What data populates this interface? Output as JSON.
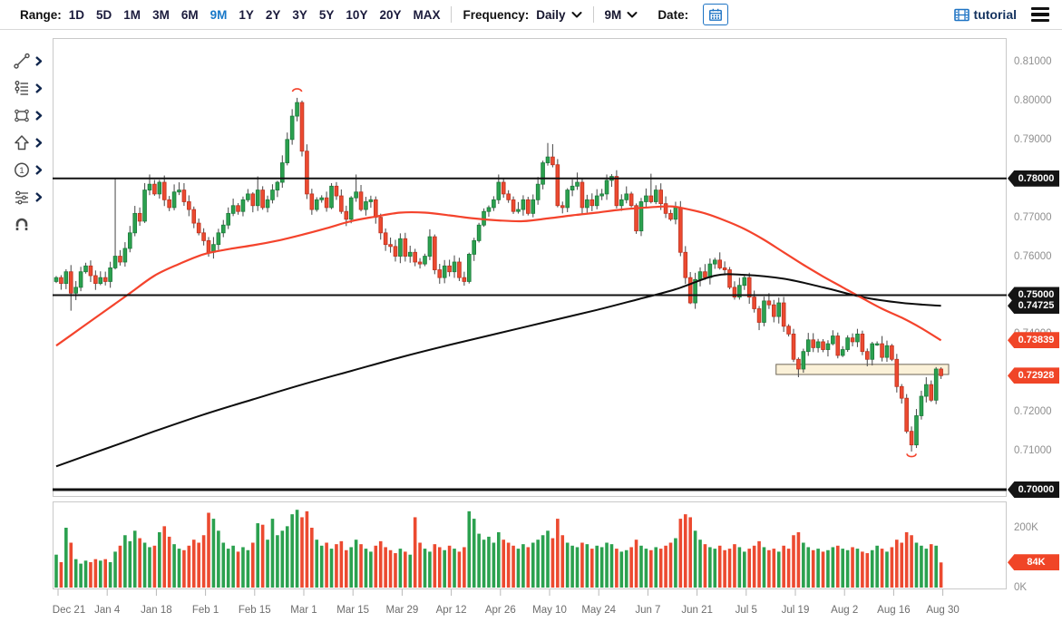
{
  "toolbar": {
    "range_label": "Range:",
    "range_options": [
      "1D",
      "5D",
      "1M",
      "3M",
      "6M",
      "9M",
      "1Y",
      "2Y",
      "3Y",
      "5Y",
      "10Y",
      "20Y",
      "MAX"
    ],
    "range_selected": "9M",
    "frequency_label": "Frequency:",
    "frequency_value": "Daily",
    "period_value": "9M",
    "date_label": "Date:",
    "tutorial_label": "tutorial"
  },
  "sidebar": {
    "tools": [
      {
        "icon": "trend-line-icon",
        "has_submenu": true
      },
      {
        "icon": "fibonacci-icon",
        "has_submenu": true
      },
      {
        "icon": "shape-icon",
        "has_submenu": true
      },
      {
        "icon": "arrow-icon",
        "has_submenu": true
      },
      {
        "icon": "annotation-number-icon",
        "has_submenu": true
      },
      {
        "icon": "indicator-icon",
        "has_submenu": true
      },
      {
        "icon": "magnet-icon",
        "has_submenu": false
      }
    ]
  },
  "colors": {
    "up": "#2ba14f",
    "up_border": "#1b7a3a",
    "down": "#ec4a30",
    "down_border": "#bd3220",
    "wick": "#555555",
    "ma_fast": "#f4432c",
    "ma_slow": "#0d0d0d",
    "level_line": "#111111",
    "zone_fill": "#fbf1d8",
    "zone_border": "#6e6557",
    "tag_dark": "#141414",
    "tag_red": "#f04527",
    "selected_range": "#1878c8"
  },
  "chart_data": {
    "type": "candlestick",
    "frequency": "Daily",
    "range": "9M",
    "x_tick_labels": [
      "Dec 21",
      "Jan 4",
      "Jan 18",
      "Feb 1",
      "Feb 15",
      "Mar 1",
      "Mar 15",
      "Mar 29",
      "Apr 12",
      "Apr 26",
      "May 10",
      "May 24",
      "Jun 7",
      "Jun 21",
      "Jul 5",
      "Jul 19",
      "Aug 2",
      "Aug 16",
      "Aug 30"
    ],
    "candles_per_tick": 10,
    "price_axis_labels": [
      "0.81000",
      "0.80000",
      "0.79000",
      "0.78000",
      "0.77000",
      "0.76000",
      "0.75000",
      "0.74000",
      "0.73000",
      "0.72000",
      "0.71000",
      "0.70000"
    ],
    "price_axis_values": [
      0.81,
      0.8,
      0.79,
      0.78,
      0.77,
      0.76,
      0.75,
      0.74,
      0.73,
      0.72,
      0.71,
      0.7
    ],
    "volume_axis": [
      {
        "label": "200K",
        "value": 200
      },
      {
        "label": "0K",
        "value": 0
      }
    ],
    "levels": [
      {
        "price": 0.78,
        "label": "0.78000",
        "width": 2
      },
      {
        "price": 0.75,
        "label": "0.75000",
        "width": 2
      },
      {
        "price": 0.7,
        "label": "0.70000",
        "width": 3
      }
    ],
    "axis_tags": [
      {
        "label": "0.78000",
        "price": 0.78,
        "style": "dark"
      },
      {
        "label": "0.75000",
        "price": 0.75,
        "style": "dark"
      },
      {
        "label": "0.74725",
        "price": 0.74725,
        "style": "dark"
      },
      {
        "label": "0.73839",
        "price": 0.73839,
        "style": "red"
      },
      {
        "label": "0.72928",
        "price": 0.72928,
        "style": "red"
      },
      {
        "label": "0.70000",
        "price": 0.7,
        "style": "dark"
      }
    ],
    "last_price": 0.72928,
    "volume_tag": {
      "label": "84K",
      "value": 84,
      "style": "red"
    },
    "first_open": 0.7535,
    "closes": [
      0.7545,
      0.753,
      0.756,
      0.7505,
      0.752,
      0.756,
      0.7575,
      0.755,
      0.753,
      0.7545,
      0.7535,
      0.757,
      0.76,
      0.7585,
      0.762,
      0.766,
      0.771,
      0.769,
      0.777,
      0.7785,
      0.776,
      0.779,
      0.7745,
      0.7725,
      0.7765,
      0.777,
      0.774,
      0.772,
      0.7685,
      0.766,
      0.764,
      0.761,
      0.763,
      0.766,
      0.768,
      0.771,
      0.773,
      0.7715,
      0.7745,
      0.776,
      0.773,
      0.777,
      0.7725,
      0.7745,
      0.777,
      0.779,
      0.784,
      0.79,
      0.796,
      0.7995,
      0.787,
      0.776,
      0.772,
      0.7745,
      0.775,
      0.7725,
      0.778,
      0.7755,
      0.7715,
      0.7695,
      0.775,
      0.7765,
      0.772,
      0.774,
      0.7745,
      0.77,
      0.766,
      0.763,
      0.7625,
      0.76,
      0.7645,
      0.76,
      0.761,
      0.7585,
      0.758,
      0.76,
      0.765,
      0.7565,
      0.7545,
      0.7575,
      0.756,
      0.7585,
      0.7545,
      0.7535,
      0.7605,
      0.764,
      0.768,
      0.7715,
      0.7725,
      0.7745,
      0.779,
      0.776,
      0.7745,
      0.7715,
      0.772,
      0.7745,
      0.771,
      0.7745,
      0.7785,
      0.784,
      0.7855,
      0.7835,
      0.773,
      0.7725,
      0.777,
      0.778,
      0.779,
      0.7725,
      0.7745,
      0.773,
      0.7755,
      0.776,
      0.7795,
      0.7805,
      0.773,
      0.7745,
      0.776,
      0.773,
      0.7665,
      0.774,
      0.7755,
      0.774,
      0.777,
      0.7735,
      0.771,
      0.7695,
      0.7725,
      0.761,
      0.7545,
      0.748,
      0.754,
      0.756,
      0.7545,
      0.758,
      0.759,
      0.757,
      0.7565,
      0.752,
      0.7495,
      0.7525,
      0.7545,
      0.7495,
      0.7465,
      0.743,
      0.7485,
      0.7475,
      0.7445,
      0.748,
      0.742,
      0.74,
      0.7335,
      0.731,
      0.7355,
      0.7385,
      0.7365,
      0.738,
      0.736,
      0.7375,
      0.7395,
      0.7345,
      0.736,
      0.739,
      0.738,
      0.74,
      0.7355,
      0.7335,
      0.7375,
      0.7375,
      0.734,
      0.737,
      0.7335,
      0.7265,
      0.7235,
      0.715,
      0.7115,
      0.719,
      0.724,
      0.727,
      0.723,
      0.731,
      0.7293
    ],
    "wick_overrides": {
      "3": {
        "low": 0.746
      },
      "12": {
        "high": 0.78
      },
      "19": {
        "high": 0.781
      },
      "41": {
        "high": 0.7805
      },
      "49": {
        "high": 0.8007
      },
      "50": {
        "high": 0.8
      },
      "61": {
        "high": 0.781
      },
      "100": {
        "high": 0.7891
      },
      "101": {
        "high": 0.7888
      },
      "106": {
        "high": 0.7815
      },
      "112": {
        "high": 0.781
      },
      "121": {
        "high": 0.7812
      },
      "129": {
        "low": 0.7477
      },
      "143": {
        "low": 0.741
      },
      "151": {
        "low": 0.7289
      },
      "174": {
        "low": 0.7098
      },
      "179": {
        "high": 0.7315
      }
    },
    "volumes_k": [
      110,
      85,
      200,
      150,
      95,
      80,
      90,
      85,
      95,
      90,
      95,
      85,
      120,
      140,
      175,
      155,
      190,
      165,
      150,
      135,
      140,
      185,
      205,
      170,
      145,
      130,
      125,
      140,
      160,
      150,
      175,
      250,
      230,
      190,
      150,
      130,
      140,
      120,
      135,
      125,
      150,
      215,
      210,
      160,
      230,
      175,
      190,
      205,
      245,
      260,
      235,
      255,
      200,
      160,
      140,
      150,
      130,
      145,
      155,
      125,
      135,
      160,
      145,
      130,
      120,
      140,
      155,
      135,
      125,
      115,
      130,
      120,
      110,
      235,
      150,
      130,
      120,
      145,
      135,
      125,
      140,
      130,
      120,
      135,
      255,
      230,
      180,
      160,
      170,
      150,
      185,
      160,
      150,
      140,
      130,
      145,
      135,
      150,
      160,
      175,
      190,
      165,
      230,
      175,
      150,
      140,
      135,
      150,
      145,
      130,
      140,
      135,
      150,
      145,
      130,
      120,
      125,
      135,
      160,
      140,
      130,
      125,
      135,
      130,
      140,
      150,
      165,
      230,
      245,
      235,
      190,
      160,
      145,
      135,
      130,
      140,
      125,
      130,
      145,
      135,
      120,
      130,
      140,
      155,
      135,
      125,
      130,
      120,
      140,
      130,
      175,
      185,
      150,
      135,
      125,
      130,
      120,
      125,
      135,
      140,
      130,
      125,
      135,
      130,
      120,
      115,
      125,
      140,
      130,
      120,
      135,
      160,
      150,
      185,
      175,
      150,
      140,
      130,
      145,
      140,
      84
    ],
    "ma_fast": {
      "name": "moving-average-fast",
      "last_label": "0.73839",
      "anchors": [
        [
          0,
          0.737
        ],
        [
          5,
          0.7415
        ],
        [
          10,
          0.746
        ],
        [
          15,
          0.7505
        ],
        [
          20,
          0.755
        ],
        [
          25,
          0.758
        ],
        [
          30,
          0.7605
        ],
        [
          35,
          0.7618
        ],
        [
          40,
          0.7628
        ],
        [
          45,
          0.764
        ],
        [
          50,
          0.7655
        ],
        [
          55,
          0.7672
        ],
        [
          60,
          0.769
        ],
        [
          65,
          0.7702
        ],
        [
          70,
          0.7712
        ],
        [
          75,
          0.7712
        ],
        [
          80,
          0.7705
        ],
        [
          85,
          0.7697
        ],
        [
          90,
          0.7692
        ],
        [
          95,
          0.769
        ],
        [
          100,
          0.7697
        ],
        [
          105,
          0.7705
        ],
        [
          110,
          0.7712
        ],
        [
          115,
          0.772
        ],
        [
          120,
          0.7725
        ],
        [
          125,
          0.7728
        ],
        [
          128,
          0.7722
        ],
        [
          132,
          0.771
        ],
        [
          136,
          0.7692
        ],
        [
          140,
          0.767
        ],
        [
          144,
          0.7642
        ],
        [
          148,
          0.761
        ],
        [
          152,
          0.7578
        ],
        [
          156,
          0.7548
        ],
        [
          160,
          0.752
        ],
        [
          164,
          0.7492
        ],
        [
          168,
          0.7465
        ],
        [
          172,
          0.7442
        ],
        [
          176,
          0.7415
        ],
        [
          180,
          0.73839
        ]
      ]
    },
    "ma_slow": {
      "name": "moving-average-slow",
      "last_label": "0.74725",
      "anchors": [
        [
          0,
          0.706
        ],
        [
          10,
          0.7105
        ],
        [
          20,
          0.715
        ],
        [
          30,
          0.7193
        ],
        [
          40,
          0.7232
        ],
        [
          50,
          0.727
        ],
        [
          60,
          0.7305
        ],
        [
          70,
          0.734
        ],
        [
          80,
          0.7372
        ],
        [
          90,
          0.7402
        ],
        [
          100,
          0.7432
        ],
        [
          110,
          0.7462
        ],
        [
          118,
          0.7488
        ],
        [
          126,
          0.7515
        ],
        [
          134,
          0.755
        ],
        [
          140,
          0.7552
        ],
        [
          148,
          0.7542
        ],
        [
          156,
          0.752
        ],
        [
          164,
          0.7495
        ],
        [
          172,
          0.748
        ],
        [
          180,
          0.74725
        ]
      ]
    },
    "zone": {
      "from_index": 147,
      "to_index": 181,
      "top_price": 0.7322,
      "bottom_price": 0.7296
    },
    "markers": [
      {
        "index": 49,
        "price": 0.8025,
        "type": "arc-over"
      },
      {
        "index": 174,
        "price": 0.709,
        "type": "arc-under"
      }
    ]
  }
}
